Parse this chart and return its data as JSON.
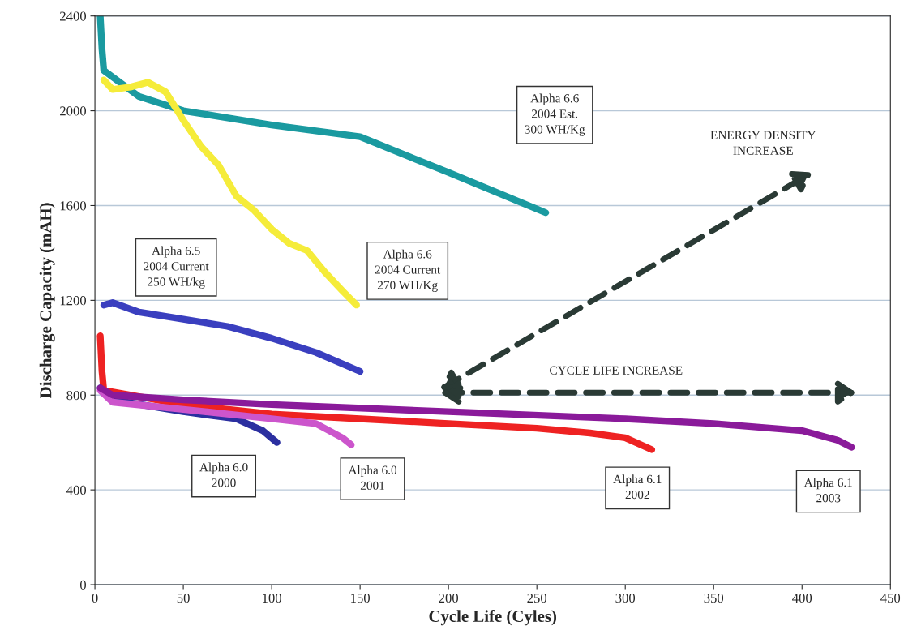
{
  "chart_data": {
    "type": "line",
    "xlabel": "Cycle Life (Cyles)",
    "ylabel": "Discharge Capacity (mAH)",
    "xlim": [
      0,
      450
    ],
    "xticks": [
      0,
      50,
      100,
      150,
      200,
      250,
      300,
      350,
      400,
      450
    ],
    "ylim": [
      0,
      2400
    ],
    "yticks": [
      0,
      400,
      800,
      1200,
      1600,
      2000,
      2400
    ],
    "grid": "y",
    "marker": "none",
    "line_style": "solid",
    "series": [
      {
        "color": "#1a9aa0",
        "x": [
          3,
          4,
          5,
          25,
          50,
          100,
          150,
          200,
          255
        ],
        "values": [
          2400,
          2260,
          2170,
          2060,
          2000,
          1940,
          1890,
          1740,
          1570
        ]
      },
      {
        "color": "#f5ec3a",
        "x": [
          5,
          10,
          20,
          30,
          40,
          50,
          60,
          70,
          80,
          90,
          100,
          110,
          120,
          130,
          140,
          148
        ],
        "values": [
          2130,
          2090,
          2100,
          2120,
          2080,
          1960,
          1850,
          1770,
          1640,
          1580,
          1500,
          1440,
          1410,
          1320,
          1240,
          1180
        ]
      },
      {
        "color": "#3a3fbf",
        "x": [
          5,
          10,
          25,
          50,
          75,
          100,
          125,
          150
        ],
        "values": [
          1180,
          1190,
          1150,
          1120,
          1090,
          1040,
          980,
          900
        ]
      },
      {
        "color": "#ee2222",
        "x": [
          3,
          4,
          5,
          50,
          100,
          150,
          200,
          250,
          280,
          300,
          315
        ],
        "values": [
          1050,
          900,
          820,
          760,
          720,
          700,
          680,
          660,
          640,
          620,
          570
        ]
      },
      {
        "color": "#2b2fa0",
        "x": [
          3,
          10,
          50,
          80,
          95,
          103
        ],
        "values": [
          830,
          780,
          730,
          700,
          650,
          600
        ]
      },
      {
        "color": "#cc55cc",
        "x": [
          3,
          10,
          50,
          100,
          125,
          140,
          145
        ],
        "values": [
          820,
          770,
          740,
          700,
          680,
          620,
          590
        ]
      },
      {
        "color": "#8a1a9a",
        "x": [
          3,
          10,
          50,
          100,
          200,
          300,
          350,
          400,
          420,
          428
        ],
        "values": [
          830,
          800,
          780,
          760,
          730,
          700,
          680,
          650,
          610,
          580
        ]
      }
    ],
    "annotations": [
      "Alpha 6.6\n2004 Est.\n300 WH/Kg",
      "Alpha 6.5\n2004 Current\n250 WH/kg",
      "Alpha 6.6\n2004 Current\n270 WH/Kg",
      "Alpha 6.0\n2000",
      "Alpha 6.0\n2001",
      "Alpha 6.1\n2002",
      "Alpha 6.1\n2003",
      "ENERGY DENSITY\nINCREASE",
      "CYCLE LIFE INCREASE"
    ]
  }
}
